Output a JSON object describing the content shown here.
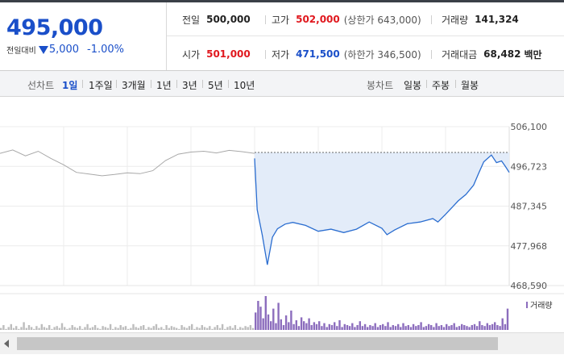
{
  "quote": {
    "current_price": "495,000",
    "change_label": "전일대비",
    "change_amount": "5,000",
    "change_percent": "-1.00%"
  },
  "stats": {
    "prev_close": {
      "label": "전일",
      "value": "500,000"
    },
    "high": {
      "label": "고가",
      "value": "502,000",
      "note": "(상한가 643,000)"
    },
    "volume": {
      "label": "거래량",
      "value": "141,324"
    },
    "open": {
      "label": "시가",
      "value": "501,000"
    },
    "low": {
      "label": "저가",
      "value": "471,500",
      "note": "(하한가 346,500)"
    },
    "trade_value": {
      "label": "거래대금",
      "value": "68,482",
      "unit": "백만"
    }
  },
  "toolbar": {
    "line_chart_label": "선차트",
    "line_periods": [
      "1일",
      "1주일",
      "3개월",
      "1년",
      "3년",
      "5년",
      "10년"
    ],
    "active_period": "1일",
    "candle_label": "봉차트",
    "candle_periods": [
      "일봉",
      "주봉",
      "월봉"
    ]
  },
  "colors": {
    "accent_blue": "#1a4fc9",
    "up_red": "#e0181e",
    "price_line": "#2a6dd0",
    "area_fill": "#e3ecf9",
    "prior_line": "#a8a8a8",
    "volume_today": "#8c6dbd",
    "volume_prior": "#bdbdbd"
  },
  "chart_data": {
    "type": "line",
    "y_ticks": [
      "506,100",
      "496,723",
      "487,345",
      "477,968",
      "468,590"
    ],
    "ylim": [
      468590,
      506100
    ],
    "reference_line": 500000,
    "prior_day": {
      "x": [
        0,
        0.05,
        0.1,
        0.15,
        0.2,
        0.25,
        0.3,
        0.35,
        0.4,
        0.45,
        0.5,
        0.55,
        0.6,
        0.65,
        0.7,
        0.75,
        0.8,
        0.85,
        0.9,
        0.95,
        1.0
      ],
      "y": [
        499800,
        500600,
        499200,
        500300,
        498600,
        497100,
        495300,
        494900,
        494500,
        494800,
        495200,
        495000,
        495700,
        498100,
        499600,
        500100,
        500300,
        499900,
        500500,
        500200,
        499800
      ]
    },
    "today": {
      "x": [
        0,
        0.01,
        0.03,
        0.05,
        0.07,
        0.09,
        0.12,
        0.15,
        0.2,
        0.25,
        0.3,
        0.35,
        0.4,
        0.45,
        0.5,
        0.52,
        0.55,
        0.6,
        0.65,
        0.7,
        0.72,
        0.75,
        0.8,
        0.83,
        0.86,
        0.88,
        0.9,
        0.93,
        0.95,
        0.97,
        0.985,
        1.0
      ],
      "y": [
        498600,
        486500,
        480500,
        473500,
        480000,
        482000,
        483100,
        483500,
        482800,
        481400,
        481900,
        481100,
        481900,
        483600,
        482100,
        480600,
        481700,
        483200,
        483600,
        484400,
        483600,
        485400,
        488600,
        490100,
        492300,
        495100,
        497800,
        499400,
        497600,
        498000,
        496700,
        495300
      ]
    },
    "volume_label": "거래량",
    "volume_prior": [
      2,
      5,
      1,
      3,
      6,
      2,
      4,
      1,
      3,
      8,
      2,
      5,
      3,
      1,
      4,
      2,
      6,
      3,
      2,
      5,
      1,
      3,
      4,
      2,
      7,
      3,
      1,
      2,
      5,
      3,
      2,
      4,
      1,
      3,
      6,
      2,
      3,
      5,
      2,
      1,
      4,
      3,
      2,
      6,
      1,
      3,
      2,
      5,
      3,
      4,
      1,
      2,
      6,
      3,
      2,
      4,
      5,
      1,
      3,
      2,
      4,
      6,
      2,
      3,
      1,
      5,
      2,
      4,
      3,
      2,
      1,
      5,
      3,
      2,
      4,
      6,
      1,
      3,
      2,
      5,
      3,
      2,
      4,
      1,
      3,
      5,
      2,
      6,
      1,
      3,
      4,
      2,
      5,
      1,
      3,
      2,
      4,
      3,
      5,
      2
    ],
    "volume_today": [
      18,
      30,
      24,
      12,
      35,
      16,
      9,
      22,
      7,
      28,
      11,
      5,
      15,
      8,
      20,
      6,
      10,
      4,
      13,
      9,
      7,
      12,
      5,
      8,
      6,
      9,
      4,
      7,
      3,
      6,
      5,
      8,
      4,
      10,
      3,
      6,
      5,
      4,
      7,
      3,
      5,
      9,
      4,
      6,
      3,
      5,
      4,
      7,
      3,
      5,
      6,
      4,
      8,
      3,
      5,
      4,
      6,
      3,
      7,
      4,
      5,
      3,
      6,
      4,
      5,
      8,
      3,
      4,
      6,
      5,
      3,
      7,
      4,
      5,
      3,
      6,
      4,
      5,
      7,
      3,
      4,
      6,
      5,
      4,
      3,
      5,
      6,
      4,
      9,
      5,
      4,
      7,
      5,
      6,
      8,
      5,
      4,
      12,
      6,
      22
    ]
  }
}
